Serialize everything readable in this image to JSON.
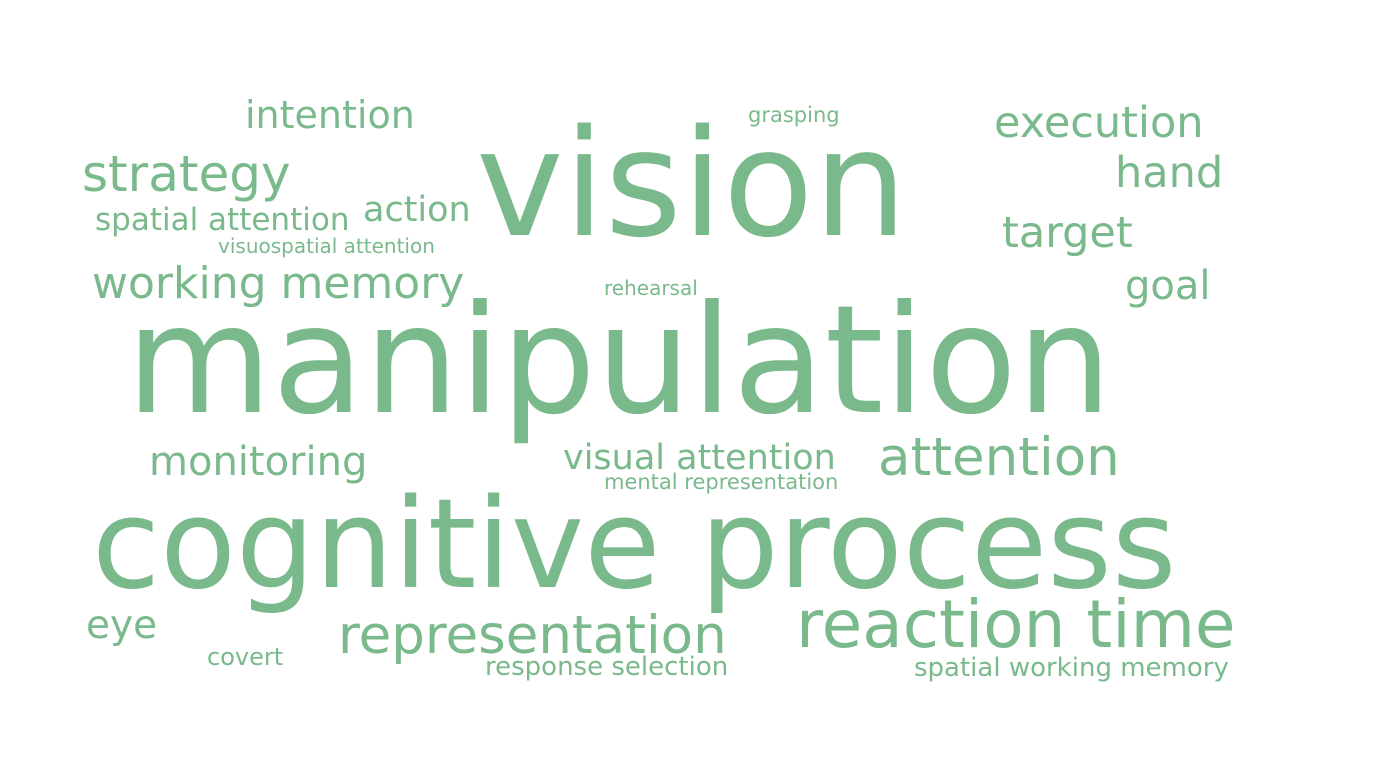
{
  "word_cloud": {
    "color": "#7ab98c",
    "words": [
      {
        "id": "vision",
        "text": "vision"
      },
      {
        "id": "manipulation",
        "text": "manipulation"
      },
      {
        "id": "cognitive_process",
        "text": "cognitive process"
      },
      {
        "id": "reaction_time",
        "text": "reaction time"
      },
      {
        "id": "representation",
        "text": "representation"
      },
      {
        "id": "attention",
        "text": "attention"
      },
      {
        "id": "working_memory",
        "text": "working memory"
      },
      {
        "id": "strategy",
        "text": "strategy"
      },
      {
        "id": "execution",
        "text": "execution"
      },
      {
        "id": "intention",
        "text": "intention"
      },
      {
        "id": "hand",
        "text": "hand"
      },
      {
        "id": "target",
        "text": "target"
      },
      {
        "id": "goal",
        "text": "goal"
      },
      {
        "id": "monitoring",
        "text": "monitoring"
      },
      {
        "id": "visual_attention",
        "text": "visual attention"
      },
      {
        "id": "action",
        "text": "action"
      },
      {
        "id": "spatial_attention",
        "text": "spatial attention"
      },
      {
        "id": "eye",
        "text": "eye"
      },
      {
        "id": "covert",
        "text": "covert"
      },
      {
        "id": "response_selection",
        "text": "response selection"
      },
      {
        "id": "spatial_working_memory",
        "text": "spatial working memory"
      },
      {
        "id": "mental_representation",
        "text": "mental representation"
      },
      {
        "id": "visuospatial_attention",
        "text": "visuospatial attention"
      },
      {
        "id": "rehearsal",
        "text": "rehearsal"
      },
      {
        "id": "grasping",
        "text": "grasping"
      }
    ]
  }
}
